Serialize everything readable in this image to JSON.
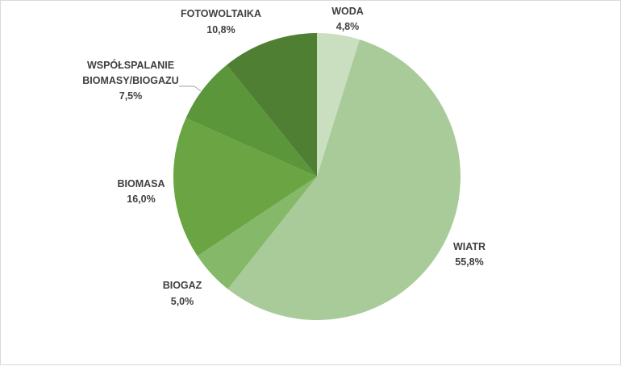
{
  "chart_data": {
    "type": "pie",
    "start_angle_deg": 0,
    "direction": "clockwise",
    "slices": [
      {
        "label": "WODA",
        "value_text": "4,8%",
        "value": 4.8,
        "color": "#c9dfc0"
      },
      {
        "label": "WIATR",
        "value_text": "55,8%",
        "value": 55.8,
        "color": "#a9cb99"
      },
      {
        "label": "BIOGAZ",
        "value_text": "5,0%",
        "value": 5.0,
        "color": "#86b86a"
      },
      {
        "label": "BIOMASA",
        "value_text": "16,0%",
        "value": 16.0,
        "color": "#6aa443"
      },
      {
        "label_lines": [
          "WSPÓŁSPALANIE",
          "BIOMASY/BIOGAZU"
        ],
        "value_text": "7,5%",
        "value": 7.5,
        "color": "#5c963a"
      },
      {
        "label": "FOTOWOLTAIKA",
        "value_text": "10,8%",
        "value": 10.8,
        "color": "#4e7f33"
      }
    ]
  }
}
